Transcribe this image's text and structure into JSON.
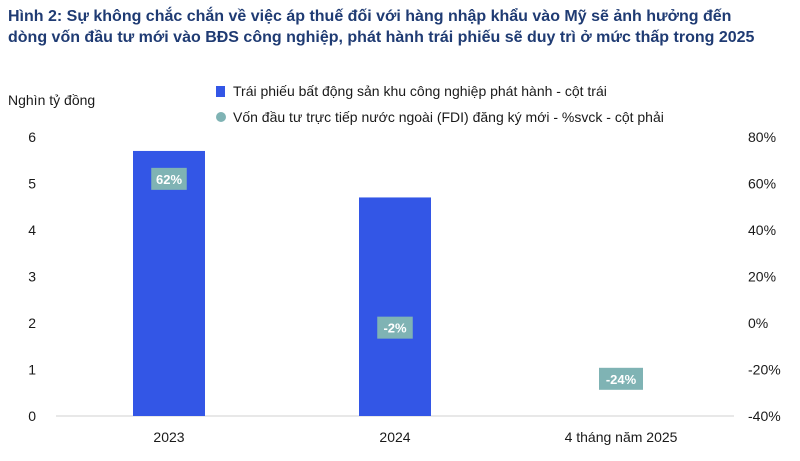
{
  "title": {
    "line1": "Hình 2: Sự không chắc chắn về việc áp thuế đối với hàng nhập khẩu vào Mỹ sẽ ảnh hưởng đến",
    "line2": "dòng vốn đầu tư mới vào BĐS công nghiệp, phát hành trái phiếu sẽ duy trì ở mức thấp trong 2025"
  },
  "colors": {
    "bar": "#3356e6",
    "dot": "#7fb3b4",
    "title": "#1f3b73"
  },
  "chart_data": {
    "type": "bar",
    "ylabel": "Nghìn tỷ đồng",
    "categories": [
      "2023",
      "2024",
      "4 tháng năm 2025"
    ],
    "ylim": [
      0,
      6
    ],
    "yticks": [
      "0",
      "1",
      "2",
      "3",
      "4",
      "5",
      "6"
    ],
    "y2lim": [
      -40,
      80
    ],
    "y2ticks": [
      "-40%",
      "-20%",
      "0%",
      "20%",
      "40%",
      "60%",
      "80%"
    ],
    "legend_position": "top",
    "grid": false,
    "series": [
      {
        "name": "Trái phiếu bất động sản khu công nghiệp phát hành - cột trái",
        "kind": "bar",
        "axis": "left",
        "values": [
          5.7,
          4.7,
          0
        ]
      },
      {
        "name": "Vốn đầu tư trực tiếp nước ngoài (FDI) đăng ký mới  - %svck - cột phải",
        "kind": "marker",
        "axis": "right",
        "values": [
          62,
          -2,
          -24
        ],
        "labels": [
          "62%",
          "-2%",
          "-24%"
        ]
      }
    ]
  }
}
